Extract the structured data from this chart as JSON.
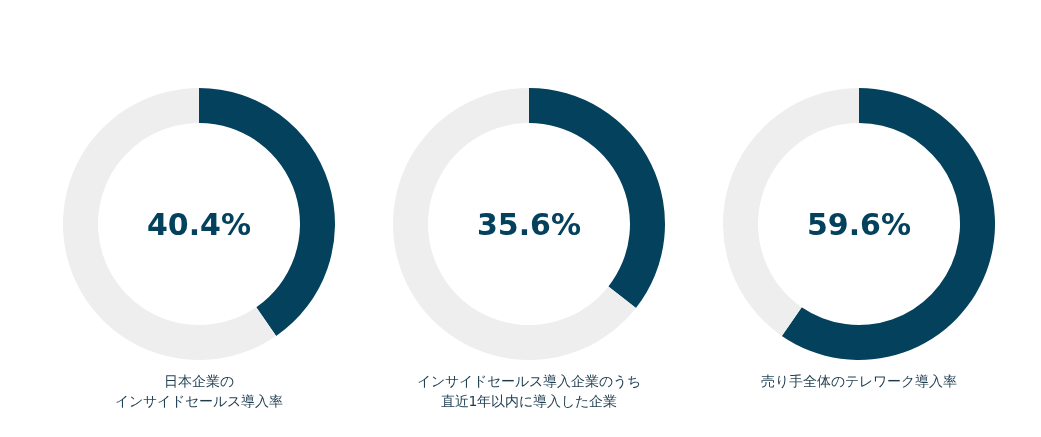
{
  "chart_data": [
    {
      "type": "donut",
      "title": "日本企業の",
      "subtitle": "インサイドセールス導入率",
      "categories": [
        null,
        null
      ],
      "values": [
        40.4,
        59.6
      ],
      "colors": [
        "#03415c",
        "#eeeeee"
      ],
      "annotations": [
        "40.4%"
      ]
    },
    {
      "type": "donut",
      "title": "インサイドセールス導入企業のうち",
      "subtitle": "直近1年以内に導入した企業",
      "categories": [
        null,
        null
      ],
      "values": [
        35.6,
        64.4
      ],
      "colors": [
        "#03415c",
        "#eeeeee"
      ],
      "annotations": [
        "35.6%"
      ]
    },
    {
      "type": "donut",
      "title": "売り手全体のテレワーク導入率",
      "categories": [
        null,
        null
      ],
      "values": [
        59.6,
        40.4
      ],
      "colors": [
        "#03415c",
        "#eeeeee"
      ],
      "annotations": [
        "59.6%"
      ]
    }
  ]
}
